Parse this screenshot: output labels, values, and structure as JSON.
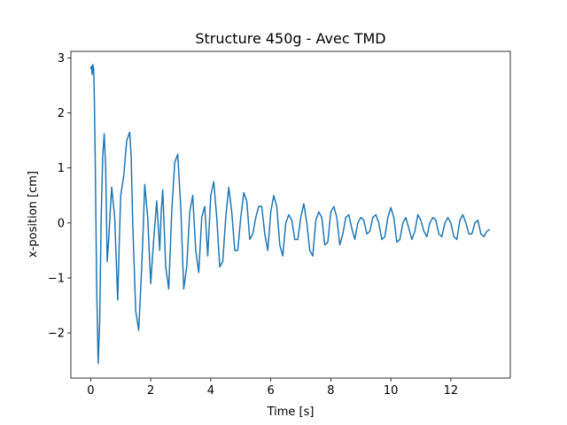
{
  "chart_data": {
    "type": "line",
    "title": "Structure 450g - Avec TMD",
    "xlabel": "Time [s]",
    "ylabel": "x-position [cm]",
    "xlim": [
      -0.66,
      13.98
    ],
    "ylim": [
      -2.82,
      3.12
    ],
    "xticks": [
      0,
      2,
      4,
      6,
      8,
      10,
      12
    ],
    "yticks": [
      -2,
      -1,
      0,
      1,
      2,
      3
    ],
    "xtick_labels": [
      "0",
      "2",
      "4",
      "6",
      "8",
      "10",
      "12"
    ],
    "ytick_labels": [
      "−2",
      "−1",
      "0",
      "1",
      "2",
      "3"
    ],
    "grid": false,
    "legend": "none",
    "line_color": "#1f77b4",
    "series": [
      {
        "x": [
          0.0,
          0.02,
          0.05,
          0.07,
          0.1,
          0.12,
          0.15,
          0.2,
          0.25,
          0.3,
          0.35,
          0.4,
          0.45,
          0.5,
          0.55,
          0.6,
          0.65,
          0.7,
          0.8,
          0.9,
          0.95,
          1.0,
          1.1,
          1.2,
          1.3,
          1.35,
          1.4,
          1.5,
          1.6,
          1.7,
          1.75,
          1.8,
          1.9,
          2.0,
          2.1,
          2.2,
          2.3,
          2.35,
          2.4,
          2.5,
          2.6,
          2.7,
          2.8,
          2.9,
          3.0,
          3.1,
          3.2,
          3.3,
          3.4,
          3.5,
          3.6,
          3.7,
          3.8,
          3.9,
          4.0,
          4.1,
          4.2,
          4.3,
          4.4,
          4.5,
          4.6,
          4.7,
          4.8,
          4.9,
          5.0,
          5.1,
          5.2,
          5.3,
          5.4,
          5.5,
          5.6,
          5.7,
          5.8,
          5.9,
          6.0,
          6.1,
          6.2,
          6.3,
          6.4,
          6.5,
          6.6,
          6.7,
          6.8,
          6.9,
          7.0,
          7.1,
          7.2,
          7.3,
          7.4,
          7.5,
          7.6,
          7.7,
          7.8,
          7.9,
          8.0,
          8.1,
          8.2,
          8.3,
          8.4,
          8.5,
          8.6,
          8.7,
          8.8,
          8.9,
          9.0,
          9.1,
          9.2,
          9.3,
          9.4,
          9.5,
          9.6,
          9.7,
          9.8,
          9.9,
          10.0,
          10.1,
          10.2,
          10.3,
          10.4,
          10.5,
          10.6,
          10.7,
          10.8,
          10.9,
          11.0,
          11.1,
          11.2,
          11.3,
          11.4,
          11.5,
          11.6,
          11.7,
          11.8,
          11.9,
          12.0,
          12.1,
          12.2,
          12.3,
          12.4,
          12.5,
          12.6,
          12.7,
          12.8,
          12.9,
          13.0,
          13.1,
          13.2,
          13.3
        ],
        "y": [
          2.8,
          2.85,
          2.7,
          2.88,
          2.8,
          2.3,
          1.2,
          -1.2,
          -2.55,
          -1.8,
          0.1,
          1.2,
          1.62,
          1.0,
          -0.7,
          -0.3,
          0.2,
          0.65,
          0.1,
          -1.4,
          -0.4,
          0.5,
          0.85,
          1.5,
          1.65,
          1.2,
          0.0,
          -1.6,
          -1.95,
          -0.8,
          -0.1,
          0.7,
          0.1,
          -1.1,
          -0.3,
          0.4,
          -0.5,
          0.2,
          0.6,
          -0.8,
          -1.2,
          0.2,
          1.1,
          1.25,
          0.3,
          -1.2,
          -0.8,
          0.2,
          0.5,
          -0.5,
          -0.9,
          0.1,
          0.3,
          -0.6,
          0.5,
          0.75,
          0.1,
          -0.8,
          -0.7,
          0.1,
          0.65,
          0.2,
          -0.5,
          -0.5,
          0.1,
          0.55,
          0.4,
          -0.3,
          -0.2,
          0.1,
          0.3,
          0.3,
          -0.2,
          -0.5,
          0.2,
          0.5,
          0.3,
          -0.4,
          -0.6,
          0.0,
          0.15,
          0.05,
          -0.3,
          -0.3,
          0.1,
          0.35,
          0.0,
          -0.5,
          -0.6,
          0.05,
          0.2,
          0.1,
          -0.4,
          -0.35,
          0.2,
          0.3,
          0.1,
          -0.4,
          -0.2,
          0.1,
          0.15,
          -0.1,
          -0.3,
          0.0,
          0.1,
          0.05,
          -0.2,
          -0.15,
          0.1,
          0.15,
          0.0,
          -0.3,
          -0.25,
          0.1,
          0.28,
          0.1,
          -0.35,
          -0.3,
          0.0,
          0.1,
          -0.1,
          -0.3,
          -0.15,
          0.15,
          0.05,
          -0.15,
          -0.25,
          0.0,
          0.1,
          0.05,
          -0.2,
          -0.25,
          0.0,
          0.1,
          0.0,
          -0.25,
          -0.3,
          0.05,
          0.15,
          0.0,
          -0.2,
          -0.2,
          0.0,
          0.05,
          -0.2,
          -0.25,
          -0.15,
          -0.12
        ]
      }
    ]
  }
}
